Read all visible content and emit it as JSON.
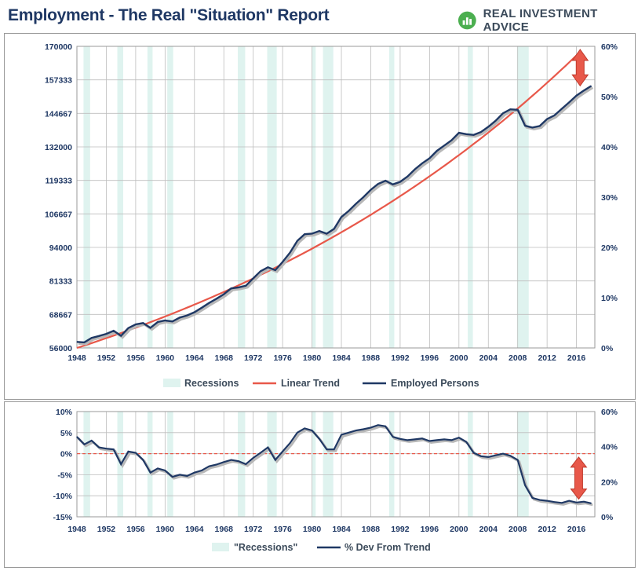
{
  "title": "Employment - The Real \"Situation\" Report",
  "brand": {
    "name": "REAL INVESTMENT ADVICE",
    "icon": "bar-chart-leaf-icon",
    "color": "#3b4a5a",
    "icon_color": "#4caf50"
  },
  "colors": {
    "employed": "#1f3864",
    "trend": "#e8584a",
    "recession": "#dff3ef",
    "dev": "#1f3864",
    "zero_line": "#e8584a",
    "arrow": "#e8584a",
    "grid": "#bdbdbd",
    "axis_text": "#1f3864"
  },
  "chart_data": [
    {
      "type": "line",
      "title": "Employment - The Real \"Situation\" Report",
      "x_ticks": [
        1948,
        1952,
        1956,
        1960,
        1964,
        1968,
        1972,
        1976,
        1980,
        1984,
        1988,
        1992,
        1996,
        2000,
        2004,
        2008,
        2012,
        2016
      ],
      "xlim": [
        1948,
        2018.5
      ],
      "ylim": [
        56000,
        170000
      ],
      "y_ticks": [
        56000,
        68667,
        81333,
        94000,
        106667,
        119333,
        132000,
        144667,
        157333,
        170000
      ],
      "y2lim": [
        0,
        60
      ],
      "y2_ticks": [
        "0%",
        "10%",
        "20%",
        "30%",
        "40%",
        "50%",
        "60%"
      ],
      "recessions": [
        [
          1948.9,
          1949.8
        ],
        [
          1953.5,
          1954.3
        ],
        [
          1957.6,
          1958.3
        ],
        [
          1960.3,
          1961.1
        ],
        [
          1969.9,
          1970.9
        ],
        [
          1973.9,
          1975.2
        ],
        [
          1980.0,
          1980.5
        ],
        [
          1981.5,
          1982.9
        ],
        [
          1990.5,
          1991.2
        ],
        [
          2001.2,
          2001.9
        ],
        [
          2007.9,
          2009.5
        ]
      ],
      "series": [
        {
          "name": "Employed Persons",
          "x": [
            1948,
            1949,
            1950,
            1951,
            1952,
            1953,
            1954,
            1955,
            1956,
            1957,
            1958,
            1959,
            1960,
            1961,
            1962,
            1963,
            1964,
            1965,
            1966,
            1967,
            1968,
            1969,
            1970,
            1971,
            1972,
            1973,
            1974,
            1975,
            1976,
            1977,
            1978,
            1979,
            1980,
            1981,
            1982,
            1983,
            1984,
            1985,
            1986,
            1987,
            1988,
            1989,
            1990,
            1991,
            1992,
            1993,
            1994,
            1995,
            1996,
            1997,
            1998,
            1999,
            2000,
            2001,
            2002,
            2003,
            2004,
            2005,
            2006,
            2007,
            2008,
            2009,
            2010,
            2011,
            2012,
            2013,
            2014,
            2015,
            2016,
            2017,
            2018
          ],
          "values": [
            58300,
            58100,
            59800,
            60500,
            61300,
            62500,
            60600,
            63500,
            64900,
            65400,
            63600,
            65800,
            66400,
            66000,
            67500,
            68300,
            69500,
            71200,
            73000,
            74600,
            76300,
            78500,
            78900,
            79500,
            82300,
            85000,
            86500,
            85400,
            88500,
            92000,
            96500,
            99000,
            99200,
            100200,
            99200,
            101000,
            105500,
            107800,
            110500,
            113000,
            115800,
            118000,
            119200,
            117800,
            118800,
            120800,
            123500,
            125800,
            127700,
            130500,
            132500,
            134500,
            137300,
            136800,
            136500,
            137600,
            139600,
            141900,
            144700,
            146200,
            146000,
            140000,
            139300,
            139900,
            142500,
            143900,
            146400,
            148800,
            151400,
            153300,
            155000
          ]
        },
        {
          "name": "Linear Trend",
          "x": [
            1948,
            2018
          ],
          "values": [
            56000,
            172000
          ],
          "curve": "exponential"
        }
      ],
      "legend": [
        "Recessions",
        "Linear Trend",
        "Employed Persons"
      ],
      "legend_position": "bottom"
    },
    {
      "type": "line",
      "xlim": [
        1948,
        2018.5
      ],
      "ylim": [
        -15,
        10
      ],
      "y_ticks": [
        "-15%",
        "-10%",
        "-5%",
        "0%",
        "5%",
        "10%"
      ],
      "y2_ticks": [
        "0%",
        "20%",
        "40%",
        "60%"
      ],
      "x_ticks": [
        1948,
        1952,
        1956,
        1960,
        1964,
        1968,
        1972,
        1976,
        1980,
        1984,
        1988,
        1992,
        1996,
        2000,
        2004,
        2008,
        2012,
        2016
      ],
      "recessions": [
        [
          1948.9,
          1949.8
        ],
        [
          1953.5,
          1954.3
        ],
        [
          1957.6,
          1958.3
        ],
        [
          1960.3,
          1961.1
        ],
        [
          1969.9,
          1970.9
        ],
        [
          1973.9,
          1975.2
        ],
        [
          1980.0,
          1980.5
        ],
        [
          1981.5,
          1982.9
        ],
        [
          1990.5,
          1991.2
        ],
        [
          2001.2,
          2001.9
        ],
        [
          2007.9,
          2009.5
        ]
      ],
      "series": [
        {
          "name": "% Dev From Trend",
          "x": [
            1948,
            1949,
            1950,
            1951,
            1952,
            1953,
            1954,
            1955,
            1956,
            1957,
            1958,
            1959,
            1960,
            1961,
            1962,
            1963,
            1964,
            1965,
            1966,
            1967,
            1968,
            1969,
            1970,
            1971,
            1972,
            1973,
            1974,
            1975,
            1976,
            1977,
            1978,
            1979,
            1980,
            1981,
            1982,
            1983,
            1984,
            1985,
            1986,
            1987,
            1988,
            1989,
            1990,
            1991,
            1992,
            1993,
            1994,
            1995,
            1996,
            1997,
            1998,
            1999,
            2000,
            2001,
            2002,
            2003,
            2004,
            2005,
            2006,
            2007,
            2008,
            2009,
            2010,
            2011,
            2012,
            2013,
            2014,
            2015,
            2016,
            2017,
            2018
          ],
          "values": [
            4.0,
            2.2,
            3.1,
            1.5,
            1.2,
            1.0,
            -2.5,
            0.5,
            0.2,
            -1.5,
            -4.5,
            -3.5,
            -4.0,
            -5.5,
            -5.0,
            -5.3,
            -4.5,
            -4.0,
            -3.0,
            -2.6,
            -2.0,
            -1.5,
            -1.8,
            -2.5,
            -1.0,
            0.2,
            1.5,
            -1.5,
            0.5,
            2.5,
            5.0,
            6.0,
            5.5,
            3.5,
            1.0,
            1.0,
            4.5,
            5.0,
            5.5,
            5.8,
            6.2,
            6.8,
            6.5,
            4.0,
            3.5,
            3.2,
            3.4,
            3.6,
            3.0,
            3.2,
            3.4,
            3.2,
            3.8,
            2.8,
            0.2,
            -0.6,
            -0.8,
            -0.4,
            0.0,
            -0.5,
            -1.5,
            -7.5,
            -10.5,
            -11.0,
            -11.2,
            -11.5,
            -11.7,
            -11.2,
            -11.6,
            -11.4,
            -11.8
          ]
        },
        {
          "name": "Zero Line",
          "x": [
            1948,
            2018
          ],
          "values": [
            0,
            0
          ]
        }
      ],
      "legend": [
        "\"Recessions\"",
        "% Dev From Trend"
      ],
      "legend_position": "bottom"
    }
  ]
}
